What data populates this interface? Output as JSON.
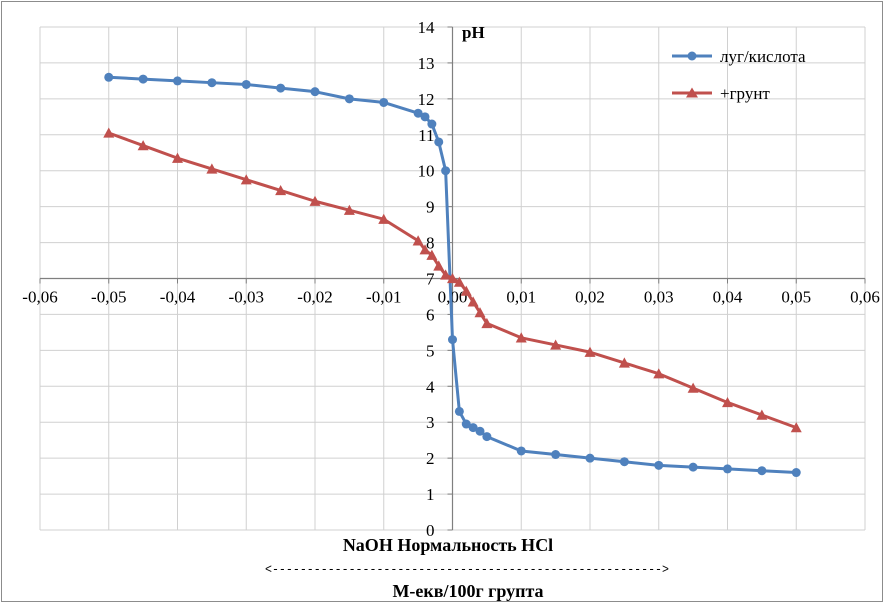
{
  "chart_data": {
    "type": "line",
    "ylabel": "pH",
    "xlabel": "NaOH Нормальность HCl",
    "xlabel2": "М-екв/100г групта",
    "arrow_line": "<-------------------------------------------------------->",
    "xlim": [
      -0.06,
      0.06
    ],
    "ylim": [
      0,
      14
    ],
    "x_ticks": [
      "-0,06",
      "-0,05",
      "-0,04",
      "-0,03",
      "-0,02",
      "-0,01",
      "0,00",
      "0,01",
      "0,02",
      "0,03",
      "0,04",
      "0,05",
      "0,06"
    ],
    "x_tick_values": [
      -0.06,
      -0.05,
      -0.04,
      -0.03,
      -0.02,
      -0.01,
      0,
      0.01,
      0.02,
      0.03,
      0.04,
      0.05,
      0.06
    ],
    "y_ticks": [
      "0",
      "1",
      "2",
      "3",
      "4",
      "5",
      "6",
      "7",
      "8",
      "9",
      "10",
      "11",
      "12",
      "13",
      "14"
    ],
    "grid": true,
    "legend_position": "top-right",
    "series": [
      {
        "name": "луг/кислота",
        "color": "#4f81bd",
        "marker": "circle",
        "points": [
          [
            -0.05,
            12.6
          ],
          [
            -0.045,
            12.55
          ],
          [
            -0.04,
            12.5
          ],
          [
            -0.035,
            12.45
          ],
          [
            -0.03,
            12.4
          ],
          [
            -0.025,
            12.3
          ],
          [
            -0.02,
            12.2
          ],
          [
            -0.015,
            12.0
          ],
          [
            -0.01,
            11.9
          ],
          [
            -0.005,
            11.6
          ],
          [
            -0.004,
            11.5
          ],
          [
            -0.003,
            11.3
          ],
          [
            -0.002,
            10.8
          ],
          [
            -0.001,
            10.0
          ],
          [
            0.0,
            5.3
          ],
          [
            0.001,
            3.3
          ],
          [
            0.002,
            2.95
          ],
          [
            0.003,
            2.85
          ],
          [
            0.004,
            2.75
          ],
          [
            0.005,
            2.6
          ],
          [
            0.01,
            2.2
          ],
          [
            0.015,
            2.1
          ],
          [
            0.02,
            2.0
          ],
          [
            0.025,
            1.9
          ],
          [
            0.03,
            1.8
          ],
          [
            0.035,
            1.75
          ],
          [
            0.04,
            1.7
          ],
          [
            0.045,
            1.65
          ],
          [
            0.05,
            1.6
          ]
        ]
      },
      {
        "name": "+грунт",
        "color": "#c0504d",
        "marker": "triangle",
        "points": [
          [
            -0.05,
            11.05
          ],
          [
            -0.045,
            10.7
          ],
          [
            -0.04,
            10.35
          ],
          [
            -0.035,
            10.05
          ],
          [
            -0.03,
            9.75
          ],
          [
            -0.025,
            9.45
          ],
          [
            -0.02,
            9.15
          ],
          [
            -0.015,
            8.9
          ],
          [
            -0.01,
            8.65
          ],
          [
            -0.005,
            8.05
          ],
          [
            -0.004,
            7.8
          ],
          [
            -0.003,
            7.65
          ],
          [
            -0.002,
            7.35
          ],
          [
            -0.001,
            7.1
          ],
          [
            0.0,
            7.0
          ],
          [
            0.001,
            6.9
          ],
          [
            0.002,
            6.65
          ],
          [
            0.003,
            6.35
          ],
          [
            0.004,
            6.05
          ],
          [
            0.005,
            5.75
          ],
          [
            0.01,
            5.35
          ],
          [
            0.015,
            5.15
          ],
          [
            0.02,
            4.95
          ],
          [
            0.025,
            4.65
          ],
          [
            0.03,
            4.35
          ],
          [
            0.035,
            3.95
          ],
          [
            0.04,
            3.55
          ],
          [
            0.045,
            3.2
          ],
          [
            0.05,
            2.85
          ]
        ]
      }
    ]
  }
}
